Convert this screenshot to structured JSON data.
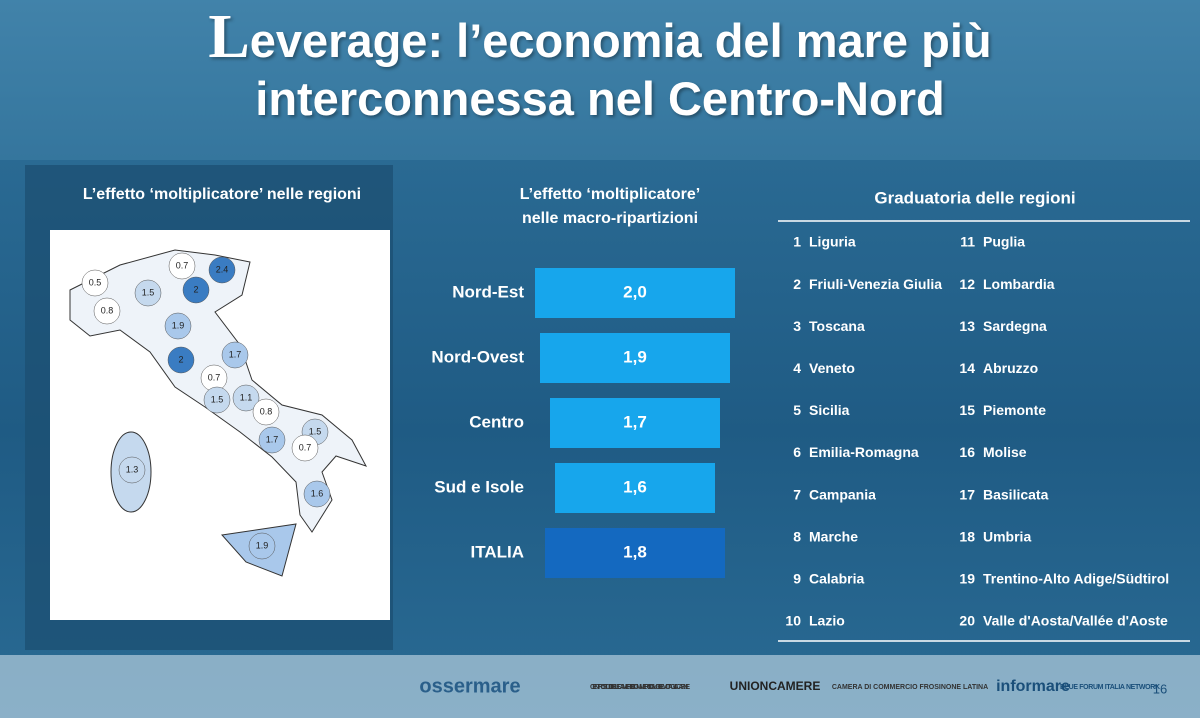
{
  "header": {
    "title": "Leverage: l’economia del mare più interconnessa nel Centro-Nord"
  },
  "map": {
    "title": "L’effetto ‘moltiplicatore’ nelle regioni",
    "values": [
      0.5,
      0.7,
      2.4,
      1.5,
      2.0,
      0.8,
      1.9,
      2.0,
      1.7,
      0.7,
      1.5,
      1.1,
      0.8,
      1.5,
      1.7,
      0.7,
      1.6,
      1.3,
      1.9
    ]
  },
  "chart_data": {
    "type": "bar",
    "orientation": "horizontal",
    "title": "L’effetto ‘moltiplicatore’ nelle macro-ripartizioni",
    "categories": [
      "Nord-Est",
      "Nord-Ovest",
      "Centro",
      "Sud e Isole",
      "ITALIA"
    ],
    "values": [
      2.0,
      1.9,
      1.7,
      1.6,
      1.8
    ],
    "value_labels": [
      "2,0",
      "1,9",
      "1,7",
      "1,6",
      "1,8"
    ],
    "colors": [
      "#17a6ec",
      "#17a6ec",
      "#17a6ec",
      "#17a6ec",
      "#1469c0"
    ]
  },
  "ranking": {
    "title": "Graduatoria delle regioni",
    "items": [
      {
        "rank": 1,
        "name": "Liguria"
      },
      {
        "rank": 2,
        "name": "Friuli-Venezia Giulia"
      },
      {
        "rank": 3,
        "name": "Toscana"
      },
      {
        "rank": 4,
        "name": "Veneto"
      },
      {
        "rank": 5,
        "name": "Sicilia"
      },
      {
        "rank": 6,
        "name": "Emilia-Romagna"
      },
      {
        "rank": 7,
        "name": "Campania"
      },
      {
        "rank": 8,
        "name": "Marche"
      },
      {
        "rank": 9,
        "name": "Calabria"
      },
      {
        "rank": 10,
        "name": "Lazio"
      },
      {
        "rank": 11,
        "name": "Puglia"
      },
      {
        "rank": 12,
        "name": "Lombardia"
      },
      {
        "rank": 13,
        "name": "Sardegna"
      },
      {
        "rank": 14,
        "name": "Abruzzo"
      },
      {
        "rank": 15,
        "name": "Piemonte"
      },
      {
        "rank": 16,
        "name": "Molise"
      },
      {
        "rank": 17,
        "name": "Basilicata"
      },
      {
        "rank": 18,
        "name": "Umbria"
      },
      {
        "rank": 19,
        "name": "Trentino-Alto Adige/Südtirol"
      },
      {
        "rank": 20,
        "name": "Valle d'Aosta/Vallée d'Aoste"
      }
    ]
  },
  "footer": {
    "logos": [
      "ossermare",
      "CENTRO STUDI DELLE CAMERE DI COMMERCIO GUGLIELMO TAGLIACARNE",
      "UNIONCAMERE",
      "CAMERA DI COMMERCIO FROSINONE LATINA",
      "informare",
      "BLUE FORUM ITALIA NETWORK"
    ],
    "page": 16
  }
}
